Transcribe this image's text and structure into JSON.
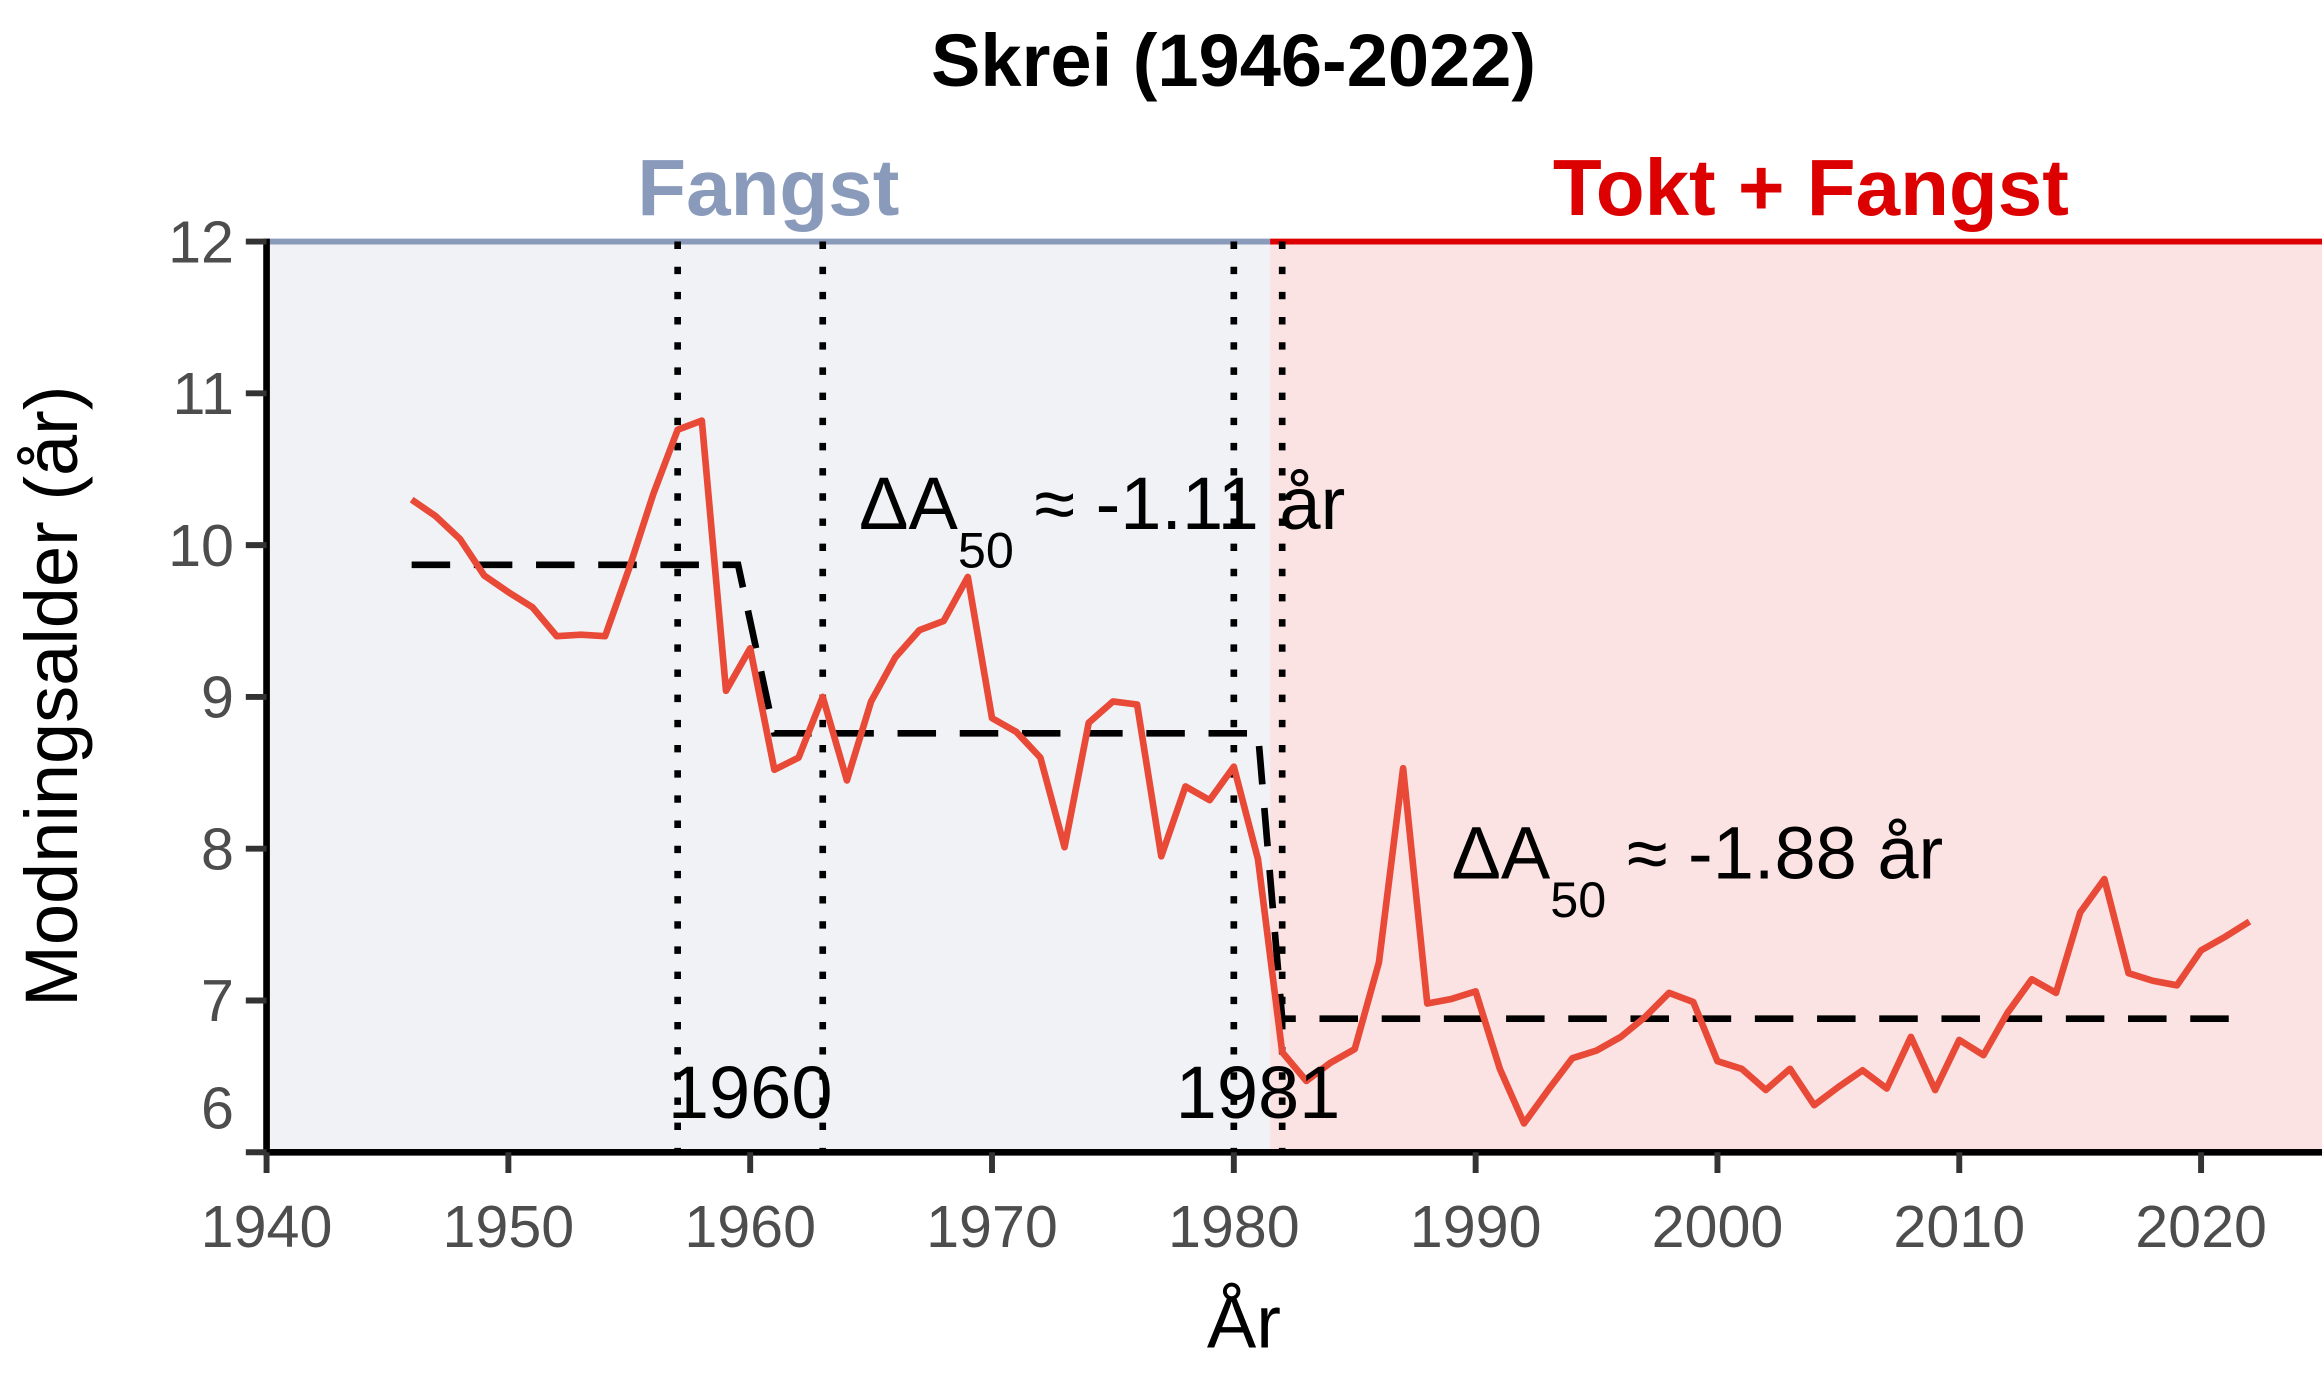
{
  "chart_data": {
    "type": "line",
    "title": "Skrei (1946-2022)",
    "xlabel": "År",
    "ylabel": "Modningsalder (år)",
    "xlim": [
      1940,
      2025
    ],
    "ylim": [
      6,
      12
    ],
    "xticks": [
      1940,
      1950,
      1960,
      1970,
      1980,
      1990,
      2000,
      2010,
      2020
    ],
    "yticks": [
      6,
      7,
      8,
      9,
      10,
      11,
      12
    ],
    "grid": false,
    "regions": [
      {
        "label": "Fangst",
        "from": 1940,
        "to": 1981.5,
        "color": "#8a9abb",
        "fill": "#f1f2f6"
      },
      {
        "label": "Tokt + Fangst",
        "from": 1981.5,
        "to": 2025,
        "color": "#dd0000",
        "fill": "#fbe3e3"
      }
    ],
    "series": [
      {
        "color": "#e84a37",
        "x": [
          1946,
          1947,
          1948,
          1949,
          1950,
          1951,
          1952,
          1953,
          1954,
          1955,
          1956,
          1957,
          1958,
          1959,
          1960,
          1961,
          1962,
          1963,
          1964,
          1965,
          1966,
          1967,
          1968,
          1969,
          1970,
          1971,
          1972,
          1973,
          1974,
          1975,
          1976,
          1977,
          1978,
          1979,
          1980,
          1981,
          1982,
          1983,
          1984,
          1985,
          1986,
          1987,
          1988,
          1989,
          1990,
          1991,
          1992,
          1993,
          1994,
          1995,
          1996,
          1997,
          1998,
          1999,
          2000,
          2001,
          2002,
          2003,
          2004,
          2005,
          2006,
          2007,
          2008,
          2009,
          2010,
          2011,
          2012,
          2013,
          2014,
          2015,
          2016,
          2017,
          2018,
          2019,
          2020,
          2021,
          2022
        ],
        "y": [
          10.3,
          10.19,
          10.04,
          9.8,
          9.69,
          9.59,
          9.4,
          9.41,
          9.4,
          9.85,
          10.34,
          10.76,
          10.82,
          9.04,
          9.32,
          8.52,
          8.6,
          9.0,
          8.45,
          8.97,
          9.26,
          9.44,
          9.5,
          9.79,
          8.86,
          8.77,
          8.6,
          8.01,
          8.83,
          8.97,
          8.95,
          7.95,
          8.41,
          8.32,
          8.54,
          7.93,
          6.66,
          6.47,
          6.59,
          6.68,
          7.25,
          8.53,
          6.98,
          7.01,
          7.06,
          6.55,
          6.19,
          6.41,
          6.62,
          6.67,
          6.76,
          6.89,
          7.05,
          6.99,
          6.6,
          6.55,
          6.41,
          6.55,
          6.31,
          6.43,
          6.54,
          6.42,
          6.76,
          6.41,
          6.74,
          6.64,
          6.92,
          7.14,
          7.05,
          7.58,
          7.8,
          7.18,
          7.13,
          7.1,
          7.33,
          7.42,
          7.52
        ]
      }
    ],
    "step_means": [
      {
        "x": [
          1946,
          1959.5,
          1961,
          1981,
          1982,
          2022
        ],
        "y": [
          9.87,
          9.87,
          8.76,
          8.76,
          6.88,
          6.88
        ]
      }
    ],
    "breakpoint_intervals": [
      [
        1957,
        1963
      ],
      [
        1980,
        1982
      ]
    ],
    "annotations": [
      {
        "prefix": "ΔA",
        "sub": "50",
        "suffix": " ≈ -1.11 år",
        "x": 1964.5,
        "y": 10.3
      },
      {
        "prefix": "ΔA",
        "sub": "50",
        "suffix": " ≈ -1.88 år",
        "x": 1989,
        "y": 8.0
      }
    ],
    "breakpoint_labels": [
      {
        "text": "1960",
        "x": 1960
      },
      {
        "text": "1981",
        "x": 1981
      }
    ]
  }
}
